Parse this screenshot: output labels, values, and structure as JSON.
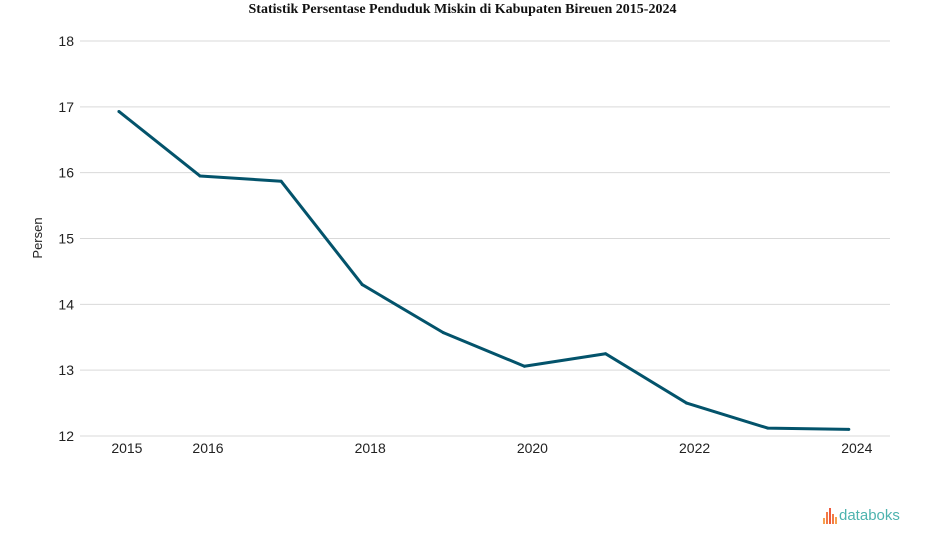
{
  "chart_data": {
    "type": "line",
    "title": "Statistik Persentase Penduduk Miskin di Kabupaten Bireuen 2015-2024",
    "xlabel": "",
    "ylabel": "Persen",
    "x": [
      2015,
      2016,
      2017,
      2018,
      2019,
      2020,
      2021,
      2022,
      2023,
      2024
    ],
    "series": [
      {
        "name": "Persentase Penduduk Miskin",
        "color": "#03536b",
        "values": [
          16.93,
          15.95,
          15.87,
          14.3,
          13.57,
          13.06,
          13.25,
          12.5,
          12.12,
          12.1
        ]
      }
    ],
    "ylim": [
      12,
      18
    ],
    "yticks": [
      "12",
      "13",
      "14",
      "15",
      "16",
      "17",
      "18"
    ],
    "xticks": [
      "2015",
      "2016",
      "2018",
      "2020",
      "2022",
      "2024"
    ],
    "grid": true,
    "legend": "none"
  },
  "branding": {
    "logo_text": "databoks",
    "logo_color": "#4db3ae",
    "mark_color": "#f0643c"
  }
}
